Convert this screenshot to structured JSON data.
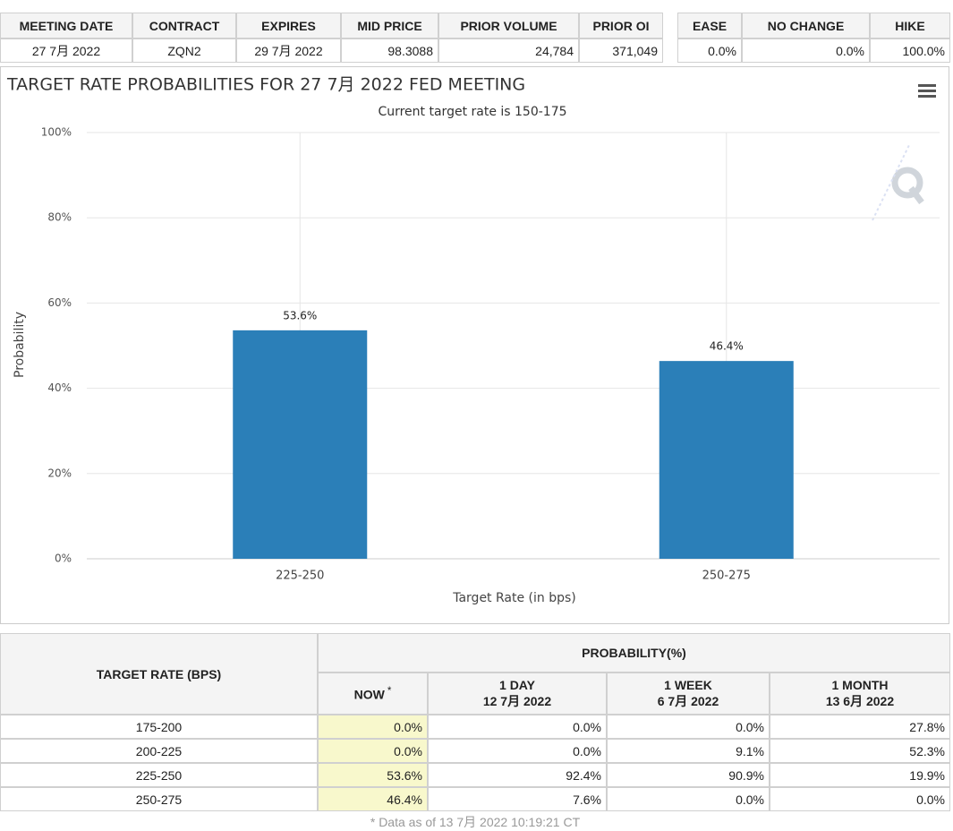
{
  "top_table": {
    "headers": [
      "MEETING DATE",
      "CONTRACT",
      "EXPIRES",
      "MID PRICE",
      "PRIOR VOLUME",
      "PRIOR OI"
    ],
    "row": [
      "27 7月 2022",
      "ZQN2",
      "29 7月 2022",
      "98.3088",
      "24,784",
      "371,049"
    ]
  },
  "outcome_table": {
    "headers": [
      "EASE",
      "NO CHANGE",
      "HIKE"
    ],
    "row": [
      "0.0%",
      "0.0%",
      "100.0%"
    ]
  },
  "chart_data": {
    "type": "bar",
    "title": "TARGET RATE PROBABILITIES FOR 27 7月 2022 FED MEETING",
    "subtitle": "Current target rate is 150-175",
    "x_label": "Target Rate (in bps)",
    "y_label": "Probability",
    "categories": [
      "225-250",
      "250-275"
    ],
    "values": [
      53.6,
      46.4
    ],
    "value_labels": [
      "53.6%",
      "46.4%"
    ],
    "color": "#2b7fb8",
    "ylim": [
      0,
      100
    ],
    "yticks": [
      {
        "value": 0,
        "label": "0%"
      },
      {
        "value": 20,
        "label": "20%"
      },
      {
        "value": 40,
        "label": "40%"
      },
      {
        "value": 60,
        "label": "60%"
      },
      {
        "value": 80,
        "label": "80%"
      },
      {
        "value": 100,
        "label": "100%"
      }
    ],
    "grid": true
  },
  "prob_table": {
    "corner": "TARGET RATE (BPS)",
    "group": "PROBABILITY(%)",
    "columns": [
      {
        "label": "NOW",
        "mark": "*"
      },
      {
        "label": "1 DAY",
        "date": "12 7月 2022"
      },
      {
        "label": "1 WEEK",
        "date": "6 7月 2022"
      },
      {
        "label": "1 MONTH",
        "date": "13 6月 2022"
      }
    ],
    "rows": [
      [
        "175-200",
        "0.0%",
        "0.0%",
        "0.0%",
        "27.8%"
      ],
      [
        "200-225",
        "0.0%",
        "0.0%",
        "9.1%",
        "52.3%"
      ],
      [
        "225-250",
        "53.6%",
        "92.4%",
        "90.9%",
        "19.9%"
      ],
      [
        "250-275",
        "46.4%",
        "7.6%",
        "0.0%",
        "0.0%"
      ]
    ]
  },
  "footnote": "* Data as of 13 7月 2022 10:19:21 CT"
}
